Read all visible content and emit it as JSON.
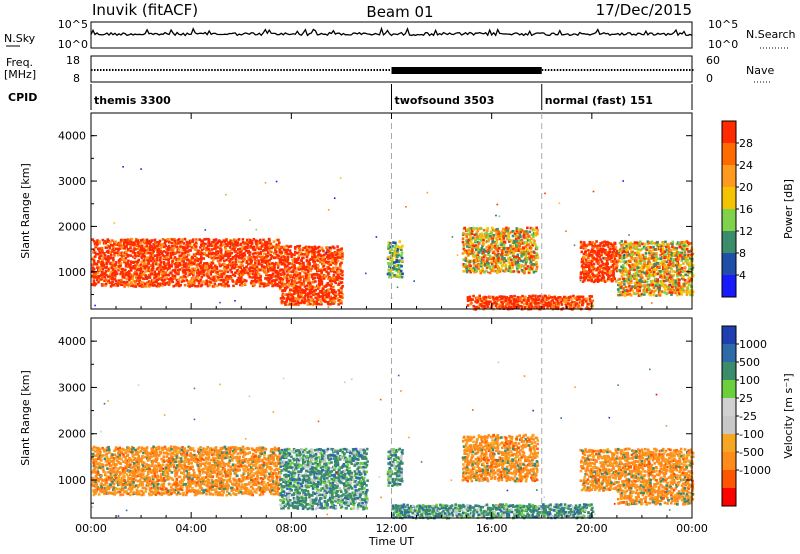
{
  "header": {
    "station": "Inuvik (fitACF)",
    "beam": "Beam 01",
    "date": "17/Dec/2015"
  },
  "strip": {
    "nsky_label": "N.Sky",
    "nsky_ticks": [
      "10^5",
      "10^0"
    ],
    "nsearch_label": "N.Search",
    "nsearch_ticks": [
      "10^5",
      "10^0"
    ],
    "freq_label_1": "Freq.",
    "freq_label_2": "[MHz]",
    "freq_ticks": [
      "18",
      "8"
    ],
    "nave_label": "Nave",
    "nave_ticks": [
      "60",
      "0"
    ],
    "cpid_label": "CPID"
  },
  "cpid_segments": [
    {
      "label": "themis 3300",
      "start": 0.0,
      "end": 12.0
    },
    {
      "label": "twofsound 3503",
      "start": 12.0,
      "end": 18.0
    },
    {
      "label": "normal (fast) 151",
      "start": 18.0,
      "end": 24.0
    }
  ],
  "colors": {
    "power": [
      "#1a1aff",
      "#1f4fa8",
      "#3a8c6a",
      "#7fd24a",
      "#f5c400",
      "#ff9a1e",
      "#ff6a00",
      "#ff2a00"
    ],
    "velocity": [
      "#ff0000",
      "#ff5500",
      "#ff8c1a",
      "#f5a623",
      "#c8c8c8",
      "#d0d0d0",
      "#6ccf3c",
      "#3a8c6a",
      "#2e6aa8",
      "#1f3fb0"
    ]
  },
  "chart_data": [
    {
      "type": "heatmap",
      "panel": "power",
      "ylabel": "Slant Range [km]",
      "colorbar_label": "Power [dB]",
      "colorbar_ticks": [
        "28",
        "24",
        "20",
        "16",
        "12",
        "8",
        "4"
      ],
      "clim": [
        0,
        32
      ],
      "x_ticks": [
        "00:00",
        "04:00",
        "08:00",
        "12:00",
        "16:00",
        "20:00",
        "00:00"
      ],
      "xlim": [
        0,
        24
      ],
      "y_ticks": [
        "1000",
        "2000",
        "3000",
        "4000"
      ],
      "ylim": [
        180,
        4500
      ],
      "regions": [
        {
          "t0": 0.0,
          "t1": 7.5,
          "r0": 700,
          "r1": 1750,
          "level": "strong"
        },
        {
          "t0": 7.5,
          "t1": 10.0,
          "r0": 300,
          "r1": 1600,
          "level": "strong"
        },
        {
          "t0": 11.8,
          "t1": 12.4,
          "r0": 900,
          "r1": 1700,
          "level": "weak"
        },
        {
          "t0": 14.8,
          "t1": 17.8,
          "r0": 1000,
          "r1": 2000,
          "level": "mixed"
        },
        {
          "t0": 15.0,
          "t1": 20.0,
          "r0": 200,
          "r1": 500,
          "level": "strong"
        },
        {
          "t0": 19.5,
          "t1": 21.0,
          "r0": 800,
          "r1": 1700,
          "level": "strong"
        },
        {
          "t0": 21.0,
          "t1": 24.0,
          "r0": 500,
          "r1": 1700,
          "level": "mixed"
        }
      ]
    },
    {
      "type": "heatmap",
      "panel": "velocity",
      "ylabel": "Slant Range [km]",
      "colorbar_label": "Velocity [m s⁻¹]",
      "colorbar_ticks": [
        "1000",
        "500",
        "100",
        "25",
        "-25",
        "-100",
        "-500",
        "-1000"
      ],
      "clim": [
        -1000,
        1000
      ],
      "x_ticks": [
        "00:00",
        "04:00",
        "08:00",
        "12:00",
        "16:00",
        "20:00",
        "00:00"
      ],
      "xlim": [
        0,
        24
      ],
      "y_ticks": [
        "1000",
        "2000",
        "3000",
        "4000"
      ],
      "ylim": [
        180,
        4500
      ],
      "xlabel": "Time UT",
      "regions": [
        {
          "t0": 0.0,
          "t1": 7.5,
          "r0": 700,
          "r1": 1750,
          "level": "neg"
        },
        {
          "t0": 7.5,
          "t1": 11.0,
          "r0": 400,
          "r1": 1700,
          "level": "pos"
        },
        {
          "t0": 11.8,
          "t1": 12.4,
          "r0": 900,
          "r1": 1700,
          "level": "pos"
        },
        {
          "t0": 14.8,
          "t1": 17.8,
          "r0": 1000,
          "r1": 2000,
          "level": "neg"
        },
        {
          "t0": 12.0,
          "t1": 20.0,
          "r0": 200,
          "r1": 500,
          "level": "pos"
        },
        {
          "t0": 19.5,
          "t1": 21.0,
          "r0": 800,
          "r1": 1700,
          "level": "neg"
        },
        {
          "t0": 21.0,
          "t1": 24.0,
          "r0": 500,
          "r1": 1700,
          "level": "neg"
        }
      ]
    }
  ]
}
